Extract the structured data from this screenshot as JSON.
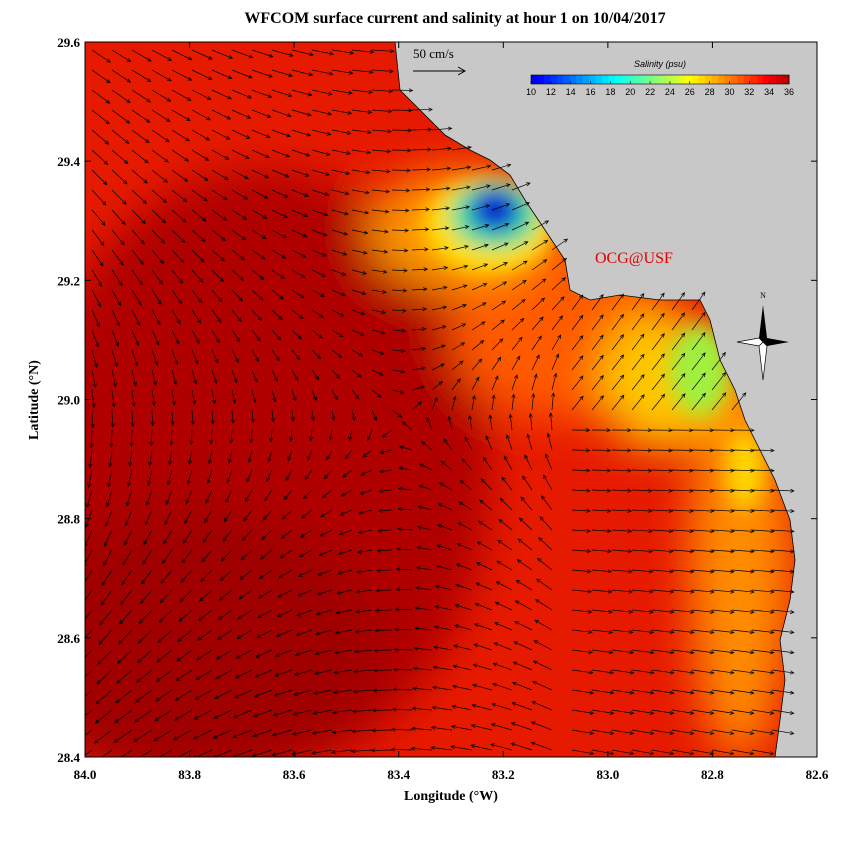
{
  "map": {
    "title": "WFCOM surface current and salinity at hour 1 on 10/04/2017",
    "x_axis": {
      "label": "Longitude (°W)",
      "lim": [
        84,
        82.6
      ],
      "ticks": [
        {
          "value": 84,
          "label": "84.0"
        },
        {
          "value": 83.8,
          "label": "83.8"
        },
        {
          "value": 83.6,
          "label": "83.6"
        },
        {
          "value": 83.4,
          "label": "83.4"
        },
        {
          "value": 83.2,
          "label": "83.2"
        },
        {
          "value": 83,
          "label": "83.0"
        },
        {
          "value": 82.8,
          "label": "82.8"
        },
        {
          "value": 82.6,
          "label": "82.6"
        }
      ]
    },
    "y_axis": {
      "label": "Latitude (°N)",
      "lim": [
        28.4,
        29.6
      ],
      "ticks": [
        {
          "value": 28.4,
          "label": "28.4"
        },
        {
          "value": 28.6,
          "label": "28.6"
        },
        {
          "value": 28.8,
          "label": "28.8"
        },
        {
          "value": 29,
          "label": "29.0"
        },
        {
          "value": 29.2,
          "label": "29.2"
        },
        {
          "value": 29.4,
          "label": "29.4"
        },
        {
          "value": 29.6,
          "label": "29.6"
        }
      ]
    },
    "colorbar": {
      "title": "Salinity (psu)",
      "lim": [
        10,
        36
      ],
      "ticks": [
        10,
        12,
        14,
        16,
        18,
        20,
        22,
        24,
        26,
        28,
        30,
        32,
        34,
        36
      ]
    },
    "scale_label": "50 cm/s",
    "credit": "OCG@USF",
    "north_label": "N"
  }
}
